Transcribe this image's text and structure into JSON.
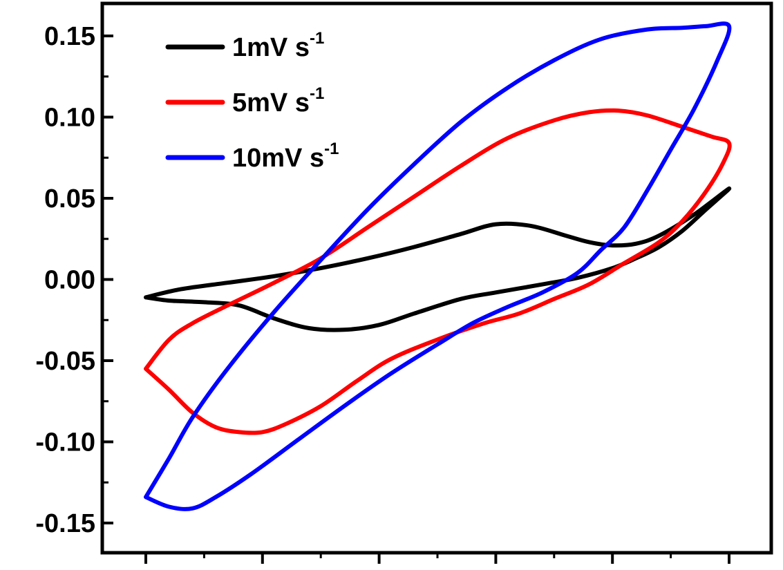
{
  "chart_data": {
    "type": "line",
    "title": "",
    "xlabel": "",
    "ylabel": "",
    "xlim": [
      0,
      6.2
    ],
    "ylim": [
      -0.165,
      0.165
    ],
    "y_ticks": [
      {
        "value": 0.15,
        "label": "0.15"
      },
      {
        "value": 0.1,
        "label": "0.10"
      },
      {
        "value": 0.05,
        "label": "0.05"
      },
      {
        "value": 0.0,
        "label": "0.00"
      },
      {
        "value": -0.05,
        "label": "-0.05"
      },
      {
        "value": -0.1,
        "label": "-0.10"
      },
      {
        "value": -0.15,
        "label": "-0.15"
      }
    ],
    "x_major_ticks": [
      0.5,
      1.5,
      2.5,
      3.5,
      4.5,
      5.5
    ],
    "legend_position": "top-left",
    "series": [
      {
        "name": "1mV s",
        "superscript": "-1",
        "color": "#000000",
        "points": [
          [
            0.5,
            -0.011
          ],
          [
            0.8,
            -0.006
          ],
          [
            1.2,
            -0.002
          ],
          [
            1.6,
            0.002
          ],
          [
            2.0,
            0.007
          ],
          [
            2.4,
            0.013
          ],
          [
            2.8,
            0.02
          ],
          [
            3.2,
            0.028
          ],
          [
            3.5,
            0.034
          ],
          [
            3.8,
            0.033
          ],
          [
            4.1,
            0.027
          ],
          [
            4.3,
            0.023
          ],
          [
            4.5,
            0.021
          ],
          [
            4.7,
            0.022
          ],
          [
            4.9,
            0.027
          ],
          [
            5.2,
            0.04
          ],
          [
            5.5,
            0.056
          ],
          [
            5.3,
            0.043
          ],
          [
            5.1,
            0.03
          ],
          [
            4.9,
            0.02
          ],
          [
            4.7,
            0.013
          ],
          [
            4.5,
            0.007
          ],
          [
            4.2,
            0.001
          ],
          [
            3.9,
            -0.003
          ],
          [
            3.5,
            -0.008
          ],
          [
            3.2,
            -0.012
          ],
          [
            2.8,
            -0.021
          ],
          [
            2.5,
            -0.028
          ],
          [
            2.2,
            -0.031
          ],
          [
            1.9,
            -0.03
          ],
          [
            1.6,
            -0.024
          ],
          [
            1.3,
            -0.016
          ],
          [
            1.0,
            -0.014
          ],
          [
            0.7,
            -0.013
          ],
          [
            0.5,
            -0.011
          ]
        ]
      },
      {
        "name": "5mV s",
        "superscript": "-1",
        "color": "#ff0000",
        "points": [
          [
            0.5,
            -0.055
          ],
          [
            0.7,
            -0.037
          ],
          [
            0.9,
            -0.027
          ],
          [
            1.2,
            -0.016
          ],
          [
            1.6,
            -0.002
          ],
          [
            2.0,
            0.013
          ],
          [
            2.4,
            0.032
          ],
          [
            2.8,
            0.051
          ],
          [
            3.2,
            0.07
          ],
          [
            3.6,
            0.087
          ],
          [
            4.0,
            0.098
          ],
          [
            4.3,
            0.103
          ],
          [
            4.55,
            0.104
          ],
          [
            4.8,
            0.101
          ],
          [
            5.1,
            0.094
          ],
          [
            5.35,
            0.088
          ],
          [
            5.5,
            0.084
          ],
          [
            5.45,
            0.072
          ],
          [
            5.3,
            0.054
          ],
          [
            5.1,
            0.036
          ],
          [
            4.9,
            0.023
          ],
          [
            4.6,
            0.01
          ],
          [
            4.3,
            -0.003
          ],
          [
            4.0,
            -0.012
          ],
          [
            3.7,
            -0.021
          ],
          [
            3.4,
            -0.027
          ],
          [
            3.0,
            -0.037
          ],
          [
            2.6,
            -0.049
          ],
          [
            2.3,
            -0.063
          ],
          [
            2.0,
            -0.078
          ],
          [
            1.7,
            -0.089
          ],
          [
            1.5,
            -0.094
          ],
          [
            1.3,
            -0.094
          ],
          [
            1.1,
            -0.091
          ],
          [
            0.9,
            -0.082
          ],
          [
            0.7,
            -0.068
          ],
          [
            0.5,
            -0.055
          ]
        ]
      },
      {
        "name": "10mV s",
        "superscript": "-1",
        "color": "#0000ff",
        "points": [
          [
            0.5,
            -0.134
          ],
          [
            0.7,
            -0.11
          ],
          [
            0.9,
            -0.085
          ],
          [
            1.2,
            -0.055
          ],
          [
            1.6,
            -0.02
          ],
          [
            2.0,
            0.012
          ],
          [
            2.4,
            0.043
          ],
          [
            2.8,
            0.071
          ],
          [
            3.2,
            0.097
          ],
          [
            3.6,
            0.118
          ],
          [
            4.0,
            0.135
          ],
          [
            4.4,
            0.148
          ],
          [
            4.8,
            0.154
          ],
          [
            5.1,
            0.155
          ],
          [
            5.3,
            0.156
          ],
          [
            5.5,
            0.156
          ],
          [
            5.4,
            0.135
          ],
          [
            5.2,
            0.105
          ],
          [
            5.0,
            0.08
          ],
          [
            4.8,
            0.055
          ],
          [
            4.6,
            0.032
          ],
          [
            4.4,
            0.018
          ],
          [
            4.2,
            0.004
          ],
          [
            3.9,
            -0.008
          ],
          [
            3.6,
            -0.017
          ],
          [
            3.3,
            -0.027
          ],
          [
            3.0,
            -0.04
          ],
          [
            2.6,
            -0.058
          ],
          [
            2.2,
            -0.078
          ],
          [
            1.8,
            -0.099
          ],
          [
            1.4,
            -0.12
          ],
          [
            1.1,
            -0.134
          ],
          [
            0.9,
            -0.141
          ],
          [
            0.7,
            -0.14
          ],
          [
            0.5,
            -0.134
          ]
        ]
      }
    ]
  }
}
